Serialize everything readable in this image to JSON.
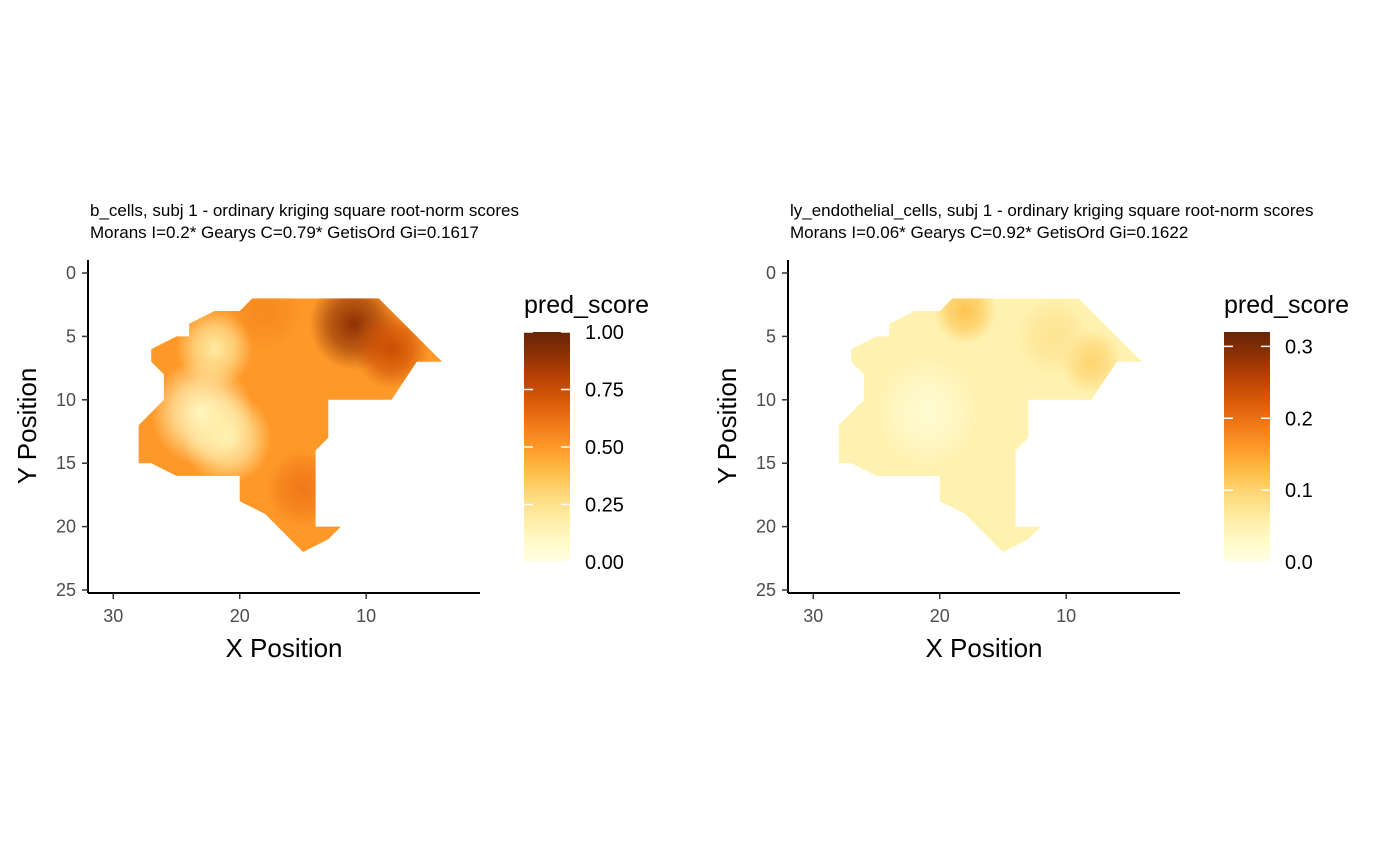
{
  "chart_data": [
    {
      "type": "heatmap",
      "title": "b_cells, subj 1 - ordinary kriging square root-norm scores",
      "subtitle": "Morans I=0.2*  Gearys C=0.79*  GetisOrd Gi=0.1617",
      "xlabel": "X Position",
      "ylabel": "Y Position",
      "x_reversed": true,
      "y_reversed": true,
      "xlim": [
        32,
        1
      ],
      "ylim": [
        0,
        25
      ],
      "x_ticks": [
        "30",
        "20",
        "10"
      ],
      "x_tick_values": [
        30,
        20,
        10
      ],
      "y_ticks": [
        "0",
        "5",
        "10",
        "15",
        "20",
        "25"
      ],
      "y_tick_values": [
        0,
        5,
        10,
        15,
        20,
        25
      ],
      "grid": false,
      "legend": {
        "title": "pred_score",
        "placement": "right",
        "min": 0,
        "max": 1.0,
        "ticks": [
          "0.00",
          "0.25",
          "0.50",
          "0.75",
          "1.00"
        ],
        "tick_values": [
          0,
          0.25,
          0.5,
          0.75,
          1.0
        ]
      },
      "region": [
        [
          19,
          2
        ],
        [
          9,
          2
        ],
        [
          4,
          7
        ],
        [
          6,
          7
        ],
        [
          8,
          10
        ],
        [
          13,
          10
        ],
        [
          13,
          13
        ],
        [
          14,
          14
        ],
        [
          14,
          20
        ],
        [
          12,
          20
        ],
        [
          13,
          21
        ],
        [
          15,
          22
        ],
        [
          18,
          19
        ],
        [
          20,
          18
        ],
        [
          20,
          16
        ],
        [
          25,
          16
        ],
        [
          27,
          15
        ],
        [
          28,
          15
        ],
        [
          28,
          12
        ],
        [
          26,
          10
        ],
        [
          26,
          8
        ],
        [
          27,
          7
        ],
        [
          27,
          6
        ],
        [
          25,
          5
        ],
        [
          24,
          5
        ],
        [
          24,
          4
        ],
        [
          22,
          3
        ],
        [
          20,
          3
        ]
      ],
      "hotspots": [
        {
          "x": 11,
          "y": 4,
          "value": 0.9,
          "spread": 3.5
        },
        {
          "x": 8,
          "y": 6,
          "value": 0.75,
          "spread": 3
        },
        {
          "x": 18,
          "y": 3,
          "value": 0.55,
          "spread": 3
        },
        {
          "x": 15,
          "y": 17,
          "value": 0.6,
          "spread": 3
        },
        {
          "x": 23,
          "y": 11,
          "value": 0.1,
          "spread": 4
        },
        {
          "x": 21,
          "y": 13,
          "value": 0.15,
          "spread": 3.5
        },
        {
          "x": 22,
          "y": 6,
          "value": 0.2,
          "spread": 3
        }
      ],
      "base_value": 0.5
    },
    {
      "type": "heatmap",
      "title": "ly_endothelial_cells, subj 1 - ordinary kriging square root-norm scores",
      "subtitle": "Morans I=0.06*  Gearys C=0.92*  GetisOrd Gi=0.1622",
      "xlabel": "X Position",
      "ylabel": "Y Position",
      "x_reversed": true,
      "y_reversed": true,
      "xlim": [
        32,
        1
      ],
      "ylim": [
        0,
        25
      ],
      "x_ticks": [
        "30",
        "20",
        "10"
      ],
      "x_tick_values": [
        30,
        20,
        10
      ],
      "y_ticks": [
        "0",
        "5",
        "10",
        "15",
        "20",
        "25"
      ],
      "y_tick_values": [
        0,
        5,
        10,
        15,
        20,
        25
      ],
      "grid": false,
      "legend": {
        "title": "pred_score",
        "placement": "right",
        "min": 0,
        "max": 0.32,
        "ticks": [
          "0.0",
          "0.1",
          "0.2",
          "0.3"
        ],
        "tick_values": [
          0,
          0.1,
          0.2,
          0.3
        ]
      },
      "region": [
        [
          19,
          2
        ],
        [
          9,
          2
        ],
        [
          4,
          7
        ],
        [
          6,
          7
        ],
        [
          8,
          10
        ],
        [
          13,
          10
        ],
        [
          13,
          13
        ],
        [
          14,
          14
        ],
        [
          14,
          20
        ],
        [
          12,
          20
        ],
        [
          13,
          21
        ],
        [
          15,
          22
        ],
        [
          18,
          19
        ],
        [
          20,
          18
        ],
        [
          20,
          16
        ],
        [
          25,
          16
        ],
        [
          27,
          15
        ],
        [
          28,
          15
        ],
        [
          28,
          12
        ],
        [
          26,
          10
        ],
        [
          26,
          8
        ],
        [
          27,
          7
        ],
        [
          27,
          6
        ],
        [
          25,
          5
        ],
        [
          24,
          5
        ],
        [
          24,
          4
        ],
        [
          22,
          3
        ],
        [
          20,
          3
        ]
      ],
      "hotspots": [
        {
          "x": 18,
          "y": 3,
          "value": 0.12,
          "spread": 2.5
        },
        {
          "x": 8,
          "y": 7,
          "value": 0.1,
          "spread": 2.5
        },
        {
          "x": 11,
          "y": 5,
          "value": 0.08,
          "spread": 3
        },
        {
          "x": 21,
          "y": 11,
          "value": 0.02,
          "spread": 4
        }
      ],
      "base_value": 0.05
    }
  ]
}
